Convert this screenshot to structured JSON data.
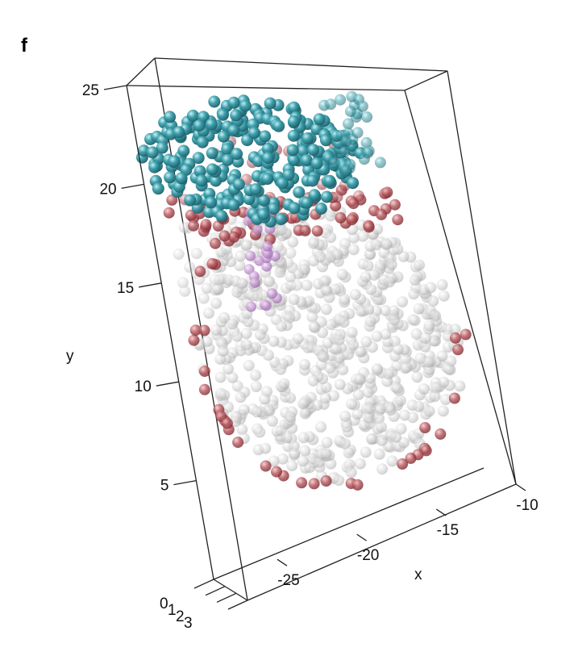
{
  "panel_label": "f",
  "chart_data": {
    "type": "scatter3d",
    "axes": {
      "x": {
        "label": "x",
        "ticks": [
          -25,
          -20,
          -15,
          -10
        ],
        "tick_labels": [
          "-25",
          "-20",
          "-15",
          "-10"
        ],
        "range": [
          -29,
          -10
        ]
      },
      "y": {
        "label": "y",
        "ticks": [
          5,
          10,
          15,
          20,
          25
        ],
        "tick_labels": [
          "5",
          "10",
          "15",
          "20",
          "25"
        ],
        "range": [
          0,
          25
        ]
      },
      "z": {
        "label": "",
        "ticks": [
          0,
          1,
          2,
          3
        ],
        "tick_labels": [
          "0",
          "1",
          "2",
          "3"
        ],
        "range": [
          0,
          3
        ]
      }
    },
    "box": true,
    "grid": false,
    "legend": "none",
    "series": [
      {
        "color": "#d3d3d3",
        "alpha": 0.55,
        "region": {
          "x": [
            -27.5,
            -11
          ],
          "y": [
            3.5,
            18.5
          ]
        }
      },
      {
        "color": "#a83c42",
        "alpha": 0.8,
        "region": {
          "x": [
            -28,
            -11
          ],
          "y": [
            3,
            23
          ]
        }
      },
      {
        "color": "#c596d2",
        "alpha": 0.75,
        "region": {
          "x": [
            -25,
            -20
          ],
          "y": [
            13,
            19
          ]
        }
      },
      {
        "color": "#3ba0ad",
        "alpha": 0.95,
        "region": {
          "x": [
            -29,
            -14
          ],
          "y": [
            17.5,
            25
          ]
        }
      }
    ]
  }
}
